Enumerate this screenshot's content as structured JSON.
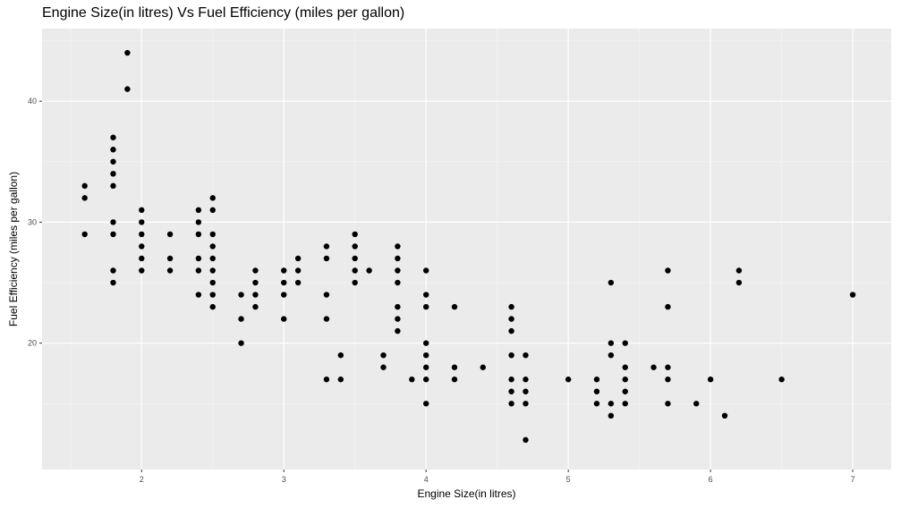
{
  "chart_data": {
    "type": "scatter",
    "title": "Engine Size(in litres) Vs Fuel Efficiency (miles per gallon)",
    "xlabel": "Engine Size(in litres)",
    "ylabel": "Fuel Efficiency (miles per gallon)",
    "xlim": [
      1.3,
      7.27
    ],
    "ylim": [
      9.55,
      46.0
    ],
    "x_ticks": [
      2,
      3,
      4,
      5,
      6,
      7
    ],
    "y_ticks": [
      20,
      30,
      40
    ],
    "grid": true,
    "panel_color": "#ebebeb",
    "point_color": "#000000",
    "points": [
      [
        1.6,
        33
      ],
      [
        1.6,
        32
      ],
      [
        1.6,
        29
      ],
      [
        1.8,
        37
      ],
      [
        1.8,
        36
      ],
      [
        1.8,
        35
      ],
      [
        1.8,
        34
      ],
      [
        1.8,
        33
      ],
      [
        1.8,
        30
      ],
      [
        1.8,
        29
      ],
      [
        1.8,
        26
      ],
      [
        1.8,
        25
      ],
      [
        1.9,
        44
      ],
      [
        1.9,
        41
      ],
      [
        2.0,
        31
      ],
      [
        2.0,
        30
      ],
      [
        2.0,
        29
      ],
      [
        2.0,
        28
      ],
      [
        2.0,
        27
      ],
      [
        2.0,
        26
      ],
      [
        2.2,
        29
      ],
      [
        2.2,
        27
      ],
      [
        2.2,
        26
      ],
      [
        2.4,
        31
      ],
      [
        2.4,
        30
      ],
      [
        2.4,
        29
      ],
      [
        2.4,
        27
      ],
      [
        2.4,
        26
      ],
      [
        2.4,
        24
      ],
      [
        2.5,
        32
      ],
      [
        2.5,
        31
      ],
      [
        2.5,
        29
      ],
      [
        2.5,
        28
      ],
      [
        2.5,
        27
      ],
      [
        2.5,
        26
      ],
      [
        2.5,
        25
      ],
      [
        2.5,
        24
      ],
      [
        2.5,
        23
      ],
      [
        2.7,
        24
      ],
      [
        2.7,
        22
      ],
      [
        2.7,
        20
      ],
      [
        2.8,
        26
      ],
      [
        2.8,
        25
      ],
      [
        2.8,
        24
      ],
      [
        2.8,
        23
      ],
      [
        3.0,
        26
      ],
      [
        3.0,
        25
      ],
      [
        3.0,
        24
      ],
      [
        3.0,
        22
      ],
      [
        3.1,
        27
      ],
      [
        3.1,
        26
      ],
      [
        3.1,
        25
      ],
      [
        3.3,
        28
      ],
      [
        3.3,
        27
      ],
      [
        3.3,
        24
      ],
      [
        3.3,
        22
      ],
      [
        3.3,
        17
      ],
      [
        3.4,
        19
      ],
      [
        3.4,
        17
      ],
      [
        3.5,
        29
      ],
      [
        3.5,
        28
      ],
      [
        3.5,
        27
      ],
      [
        3.5,
        26
      ],
      [
        3.5,
        25
      ],
      [
        3.6,
        26
      ],
      [
        3.7,
        19
      ],
      [
        3.7,
        18
      ],
      [
        3.8,
        28
      ],
      [
        3.8,
        27
      ],
      [
        3.8,
        26
      ],
      [
        3.8,
        25
      ],
      [
        3.8,
        23
      ],
      [
        3.8,
        22
      ],
      [
        3.8,
        21
      ],
      [
        3.9,
        17
      ],
      [
        4.0,
        26
      ],
      [
        4.0,
        24
      ],
      [
        4.0,
        23
      ],
      [
        4.0,
        20
      ],
      [
        4.0,
        19
      ],
      [
        4.0,
        18
      ],
      [
        4.0,
        17
      ],
      [
        4.0,
        15
      ],
      [
        4.2,
        23
      ],
      [
        4.2,
        18
      ],
      [
        4.2,
        17
      ],
      [
        4.4,
        18
      ],
      [
        4.6,
        23
      ],
      [
        4.6,
        22
      ],
      [
        4.6,
        21
      ],
      [
        4.6,
        19
      ],
      [
        4.6,
        17
      ],
      [
        4.6,
        16
      ],
      [
        4.6,
        15
      ],
      [
        4.7,
        19
      ],
      [
        4.7,
        17
      ],
      [
        4.7,
        16
      ],
      [
        4.7,
        15
      ],
      [
        4.7,
        12
      ],
      [
        5.0,
        17
      ],
      [
        5.2,
        17
      ],
      [
        5.2,
        16
      ],
      [
        5.2,
        15
      ],
      [
        5.3,
        25
      ],
      [
        5.3,
        20
      ],
      [
        5.3,
        19
      ],
      [
        5.3,
        15
      ],
      [
        5.3,
        14
      ],
      [
        5.4,
        20
      ],
      [
        5.4,
        18
      ],
      [
        5.4,
        17
      ],
      [
        5.4,
        16
      ],
      [
        5.4,
        15
      ],
      [
        5.6,
        18
      ],
      [
        5.7,
        26
      ],
      [
        5.7,
        23
      ],
      [
        5.7,
        18
      ],
      [
        5.7,
        17
      ],
      [
        5.7,
        15
      ],
      [
        5.9,
        15
      ],
      [
        6.0,
        17
      ],
      [
        6.1,
        14
      ],
      [
        6.2,
        26
      ],
      [
        6.2,
        25
      ],
      [
        6.5,
        17
      ],
      [
        7.0,
        24
      ]
    ]
  }
}
